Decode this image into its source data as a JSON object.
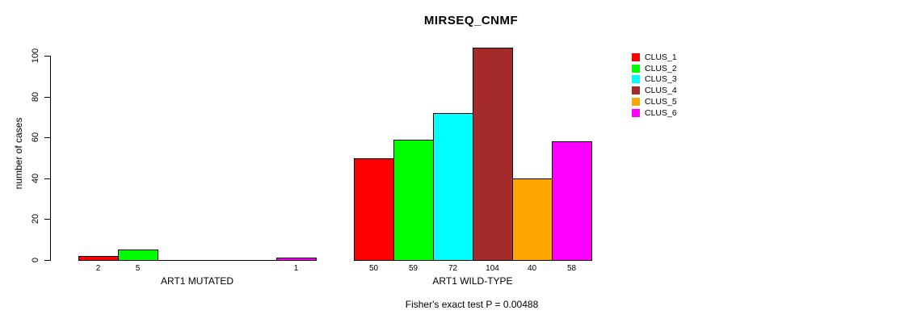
{
  "chart_data": {
    "type": "bar",
    "title": "MIRSEQ_CNMF",
    "ylabel": "number of cases",
    "ylim": [
      0,
      100
    ],
    "yticks": [
      0,
      20,
      40,
      60,
      80,
      100
    ],
    "grid": false,
    "legend_position": "right",
    "annotation": "Fisher's exact test P = 0.00488",
    "categories": [
      "ART1 MUTATED",
      "ART1 WILD-TYPE"
    ],
    "series": [
      {
        "name": "CLUS_1",
        "color": "#ff0000",
        "values": [
          2,
          50
        ]
      },
      {
        "name": "CLUS_2",
        "color": "#00ff00",
        "values": [
          5,
          59
        ]
      },
      {
        "name": "CLUS_3",
        "color": "#00ffff",
        "values": [
          0,
          72
        ]
      },
      {
        "name": "CLUS_4",
        "color": "#a52a2a",
        "values": [
          0,
          104
        ]
      },
      {
        "name": "CLUS_5",
        "color": "#ffa500",
        "values": [
          0,
          40
        ]
      },
      {
        "name": "CLUS_6",
        "color": "#ff00ff",
        "values": [
          1,
          58
        ]
      }
    ],
    "bar_labels": {
      "ART1 MUTATED": [
        "2",
        "5",
        "",
        "",
        "",
        "1"
      ],
      "ART1 WILD-TYPE": [
        "50",
        "59",
        "72",
        "104",
        "40",
        "58"
      ]
    }
  }
}
